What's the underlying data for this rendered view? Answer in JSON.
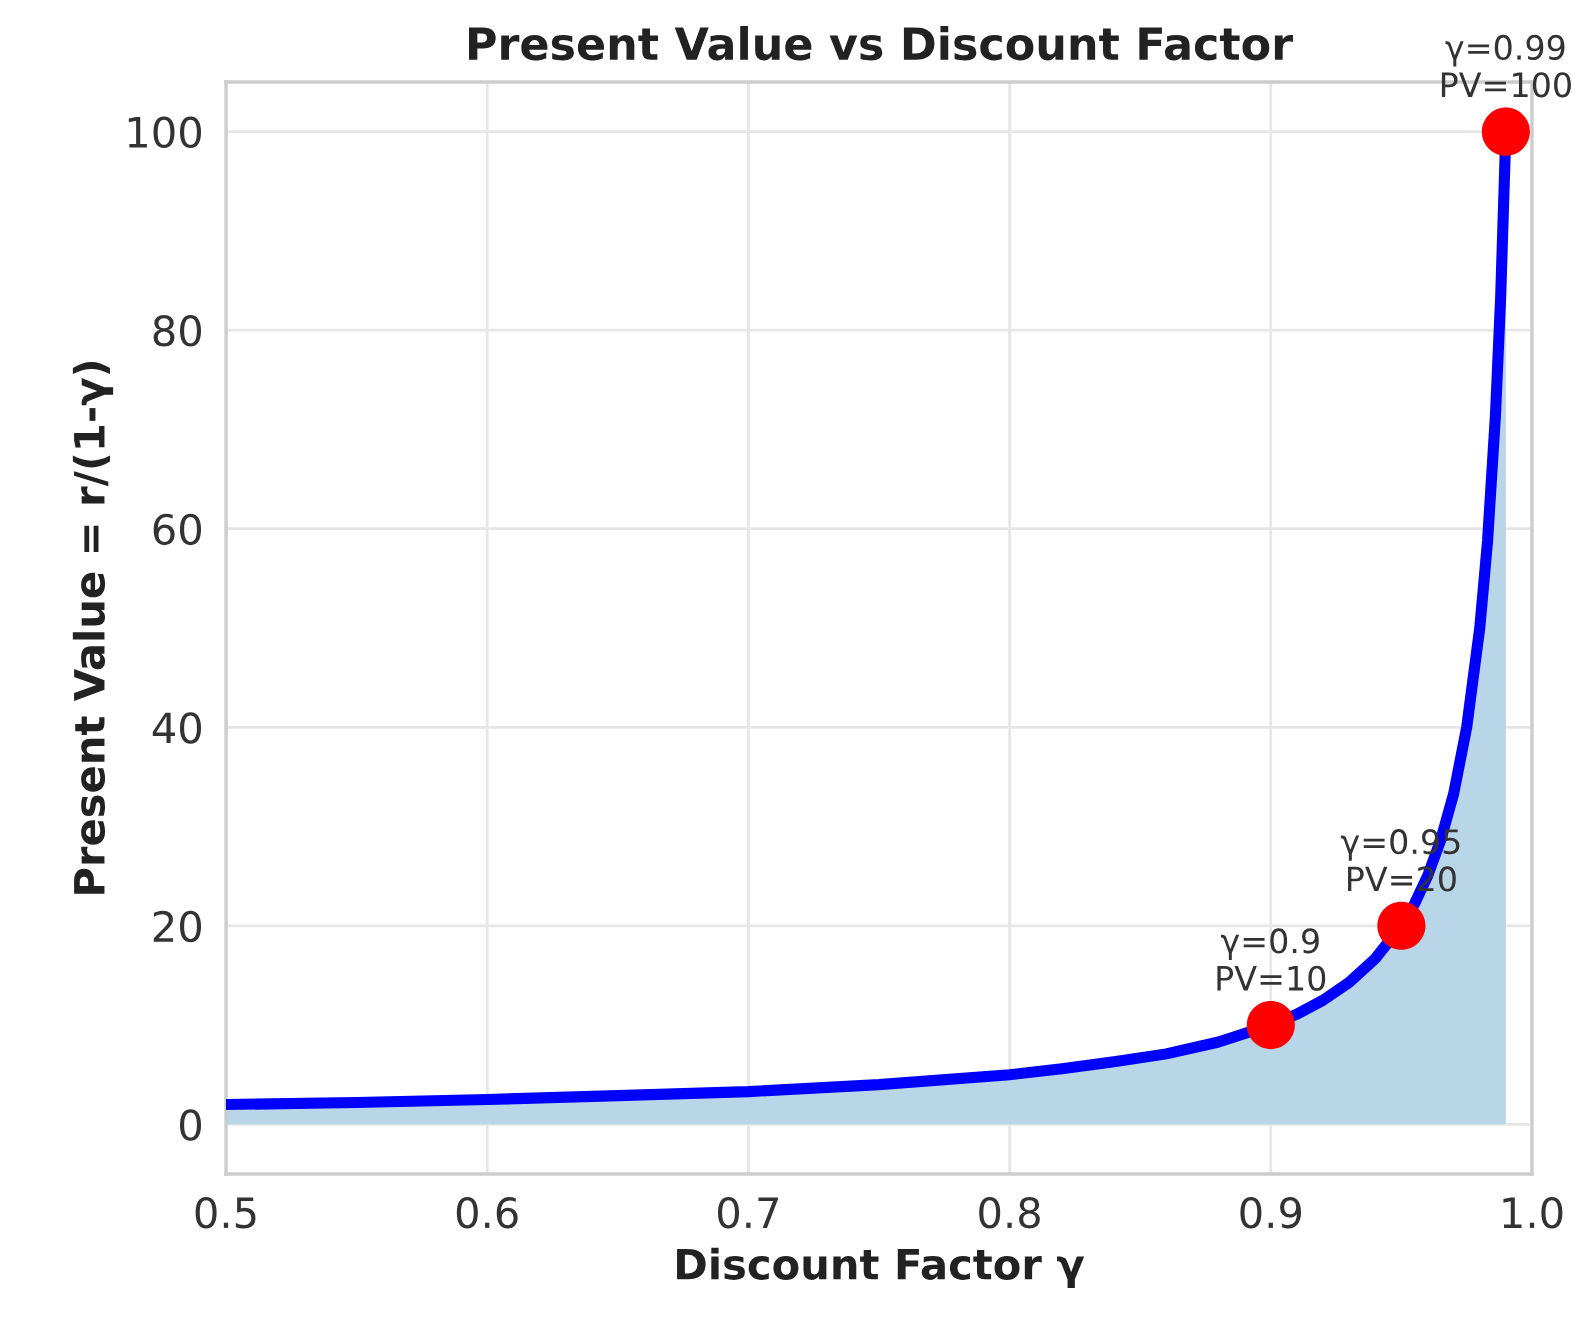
{
  "chart_data": {
    "type": "line",
    "title": "Present Value vs Discount Factor",
    "xlabel": "Discount Factor γ",
    "ylabel": "Present Value = r/(1-γ)",
    "x": [
      0.5,
      0.55,
      0.6,
      0.65,
      0.7,
      0.75,
      0.8,
      0.82,
      0.84,
      0.86,
      0.88,
      0.9,
      0.91,
      0.92,
      0.93,
      0.94,
      0.95,
      0.955,
      0.96,
      0.965,
      0.97,
      0.975,
      0.98,
      0.983,
      0.986,
      0.988,
      0.99
    ],
    "series": [
      {
        "type": "area",
        "color": "#0000ff",
        "values": [
          2,
          2.2,
          2.5,
          2.9,
          3.3,
          4,
          5,
          5.6,
          6.3,
          7.1,
          8.3,
          10,
          11.1,
          12.5,
          14.3,
          16.7,
          20,
          22.2,
          25,
          28.6,
          33.3,
          40,
          50,
          58.8,
          71.4,
          83.3,
          100
        ]
      },
      {
        "type": "scatter",
        "color": "#ff0000",
        "x": [
          0.9,
          0.95,
          0.99
        ],
        "values": [
          10,
          20,
          100
        ]
      }
    ],
    "annotations": [
      {
        "text": "γ=0.9\nPV=10",
        "x": 0.9,
        "y": 10
      },
      {
        "text": "γ=0.95\nPV=20",
        "x": 0.95,
        "y": 20
      },
      {
        "text": "γ=0.99\nPV=100",
        "x": 0.99,
        "y": 100
      }
    ],
    "xlim": [
      0.5,
      1.0
    ],
    "xticks": [
      0.5,
      0.6,
      0.7,
      0.8,
      0.9,
      {
        "value": 1.0,
        "label": "1.0"
      }
    ],
    "ylim": [
      -5,
      105
    ],
    "yticks": [
      0,
      20,
      40,
      60,
      80,
      100
    ],
    "grid": true
  }
}
